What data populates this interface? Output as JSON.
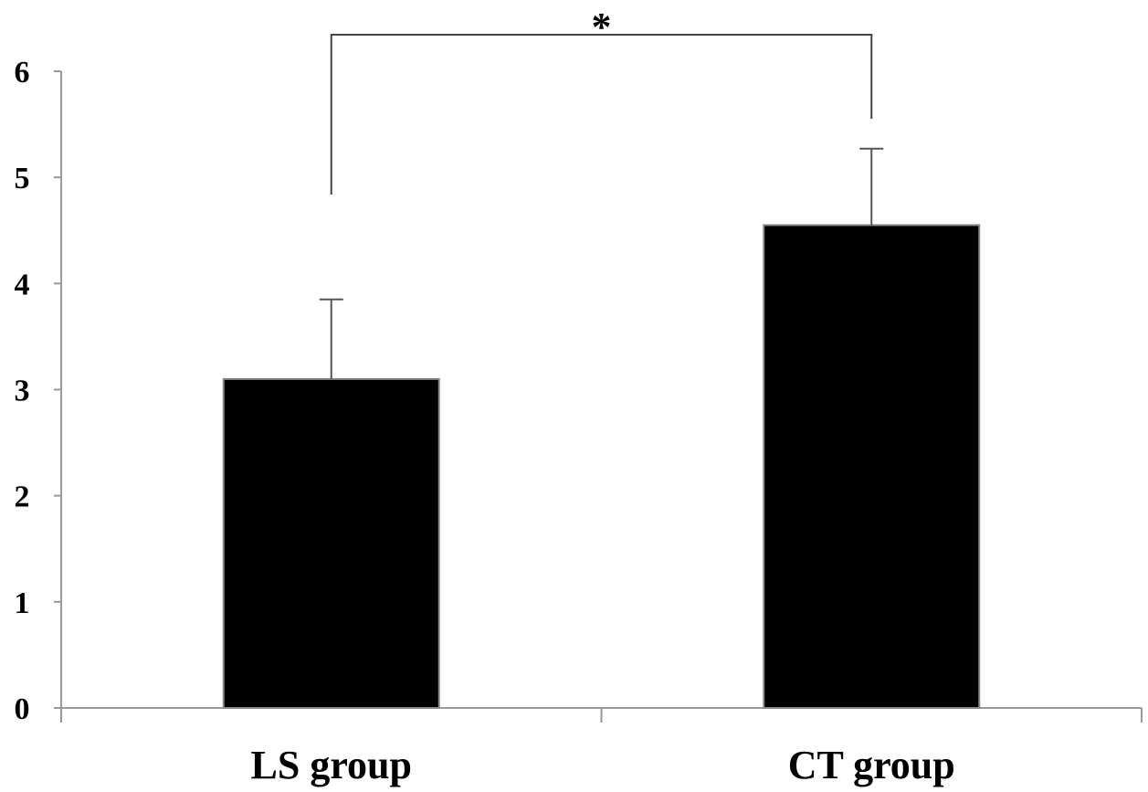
{
  "chart_data": {
    "type": "bar",
    "categories": [
      "LS group",
      "CT group"
    ],
    "values": [
      3.1,
      4.55
    ],
    "error_upper": [
      0.75,
      0.72
    ],
    "ylim": [
      0,
      6
    ],
    "yticks": [
      "0",
      "1",
      "2",
      "3",
      "4",
      "5",
      "6"
    ],
    "title": "",
    "xlabel": "",
    "ylabel": "",
    "grid": false,
    "legend": "none",
    "bar_color": "#000000",
    "annotations": [
      {
        "text": "*",
        "between": [
          "LS group",
          "CT group"
        ],
        "type": "significance-bracket"
      }
    ]
  }
}
